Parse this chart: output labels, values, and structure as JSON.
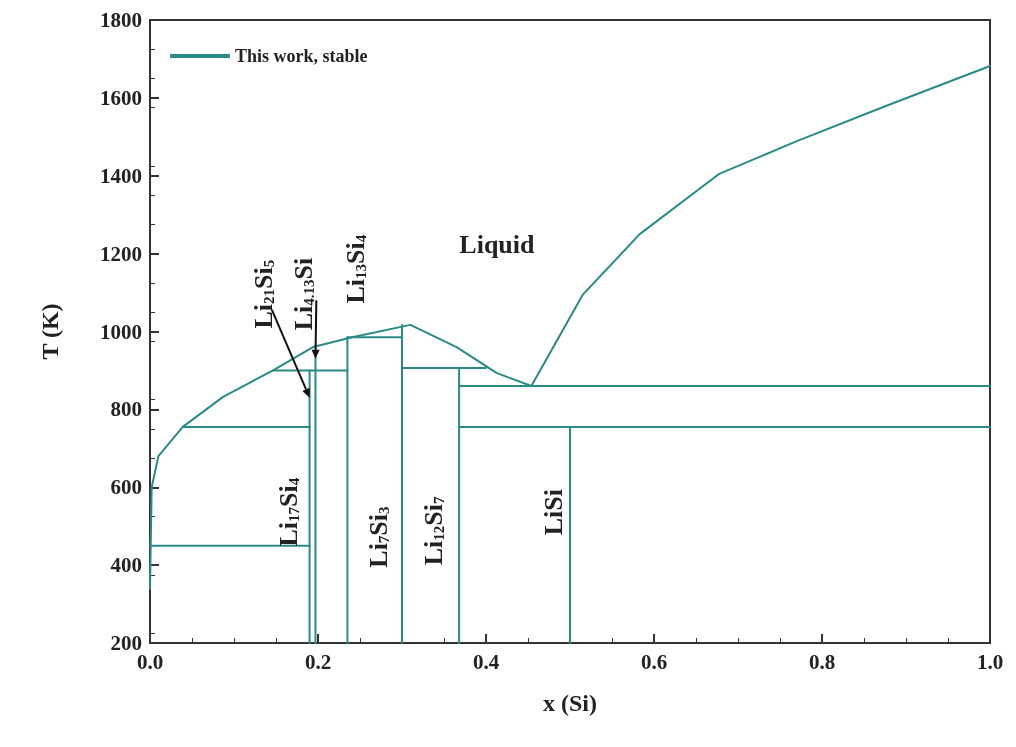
{
  "chart_data": {
    "type": "line",
    "xlabel": "x (Si)",
    "ylabel": "T (K)",
    "legend": "top left",
    "marker": "none",
    "grid": false,
    "xlim": [
      0,
      1
    ],
    "ylim": [
      200,
      1800
    ],
    "xticks": [
      {
        "value": 0,
        "label": "0.0"
      },
      {
        "value": 0.2,
        "label": "0.2"
      },
      {
        "value": 0.4,
        "label": "0.4"
      },
      {
        "value": 0.6,
        "label": "0.6"
      },
      {
        "value": 0.8,
        "label": "0.8"
      },
      {
        "value": 1,
        "label": "1.0"
      }
    ],
    "yticks": [
      200,
      400,
      600,
      800,
      1000,
      1200,
      1400,
      1600,
      1800
    ],
    "series": [
      {
        "name": "This work, stable",
        "color": "#2a8a86",
        "x": [
          0,
          0.002,
          0.01,
          0.039,
          0.087,
          0.147,
          0.194,
          0.242,
          0.31,
          0.365,
          0.413,
          0.454,
          0.515,
          0.583,
          0.677,
          0.77,
          0.876,
          1
        ],
        "values": [
          340,
          600,
          680,
          755,
          832,
          901,
          960,
          986,
          1017,
          960,
          893,
          860,
          1094,
          1250,
          1404,
          1489,
          1579,
          1682
        ]
      },
      {
        "color": "#2a8a86",
        "x": [
          0.19,
          0.19
        ],
        "values": [
          200,
          900
        ]
      },
      {
        "color": "#2a8a86",
        "x": [
          0.197,
          0.197
        ],
        "values": [
          200,
          955
        ]
      },
      {
        "color": "#2a8a86",
        "x": [
          0.235,
          0.235
        ],
        "values": [
          200,
          985
        ]
      },
      {
        "color": "#2a8a86",
        "x": [
          0.3,
          0.3
        ],
        "values": [
          200,
          1017
        ]
      },
      {
        "color": "#2a8a86",
        "x": [
          0.368,
          0.368
        ],
        "values": [
          200,
          906
        ]
      },
      {
        "color": "#2a8a86",
        "x": [
          0.5,
          0.5
        ],
        "values": [
          200,
          755
        ]
      },
      {
        "color": "#2a8a86",
        "x": [
          0,
          0.19
        ],
        "values": [
          450,
          450
        ]
      },
      {
        "color": "#2a8a86",
        "x": [
          0.039,
          0.19
        ],
        "values": [
          755,
          755
        ]
      },
      {
        "color": "#2a8a86",
        "x": [
          0.147,
          0.235
        ],
        "values": [
          900,
          900
        ]
      },
      {
        "color": "#2a8a86",
        "x": [
          0.235,
          0.3
        ],
        "values": [
          985,
          985
        ]
      },
      {
        "color": "#2a8a86",
        "x": [
          0.3,
          0.4
        ],
        "values": [
          906,
          906
        ]
      },
      {
        "color": "#2a8a86",
        "x": [
          0.368,
          1
        ],
        "values": [
          860,
          860
        ]
      },
      {
        "color": "#2a8a86",
        "x": [
          0.368,
          1
        ],
        "values": [
          755,
          755
        ]
      }
    ],
    "annotations": [
      "Liquid",
      {
        "text": "Li$_{21}$Si$_{5}$",
        "x": 0.19,
        "y": 830
      },
      {
        "text": "Li$_{4.13}$Si",
        "x": 0.197,
        "y": 930
      },
      "Li$_{13}$Si$_{4}$",
      "Li$_{17}$Si$_{4}$",
      "Li$_{7}$Si$_{3}$",
      "Li$_{12}$Si$_{7}$",
      "LiSi"
    ]
  }
}
